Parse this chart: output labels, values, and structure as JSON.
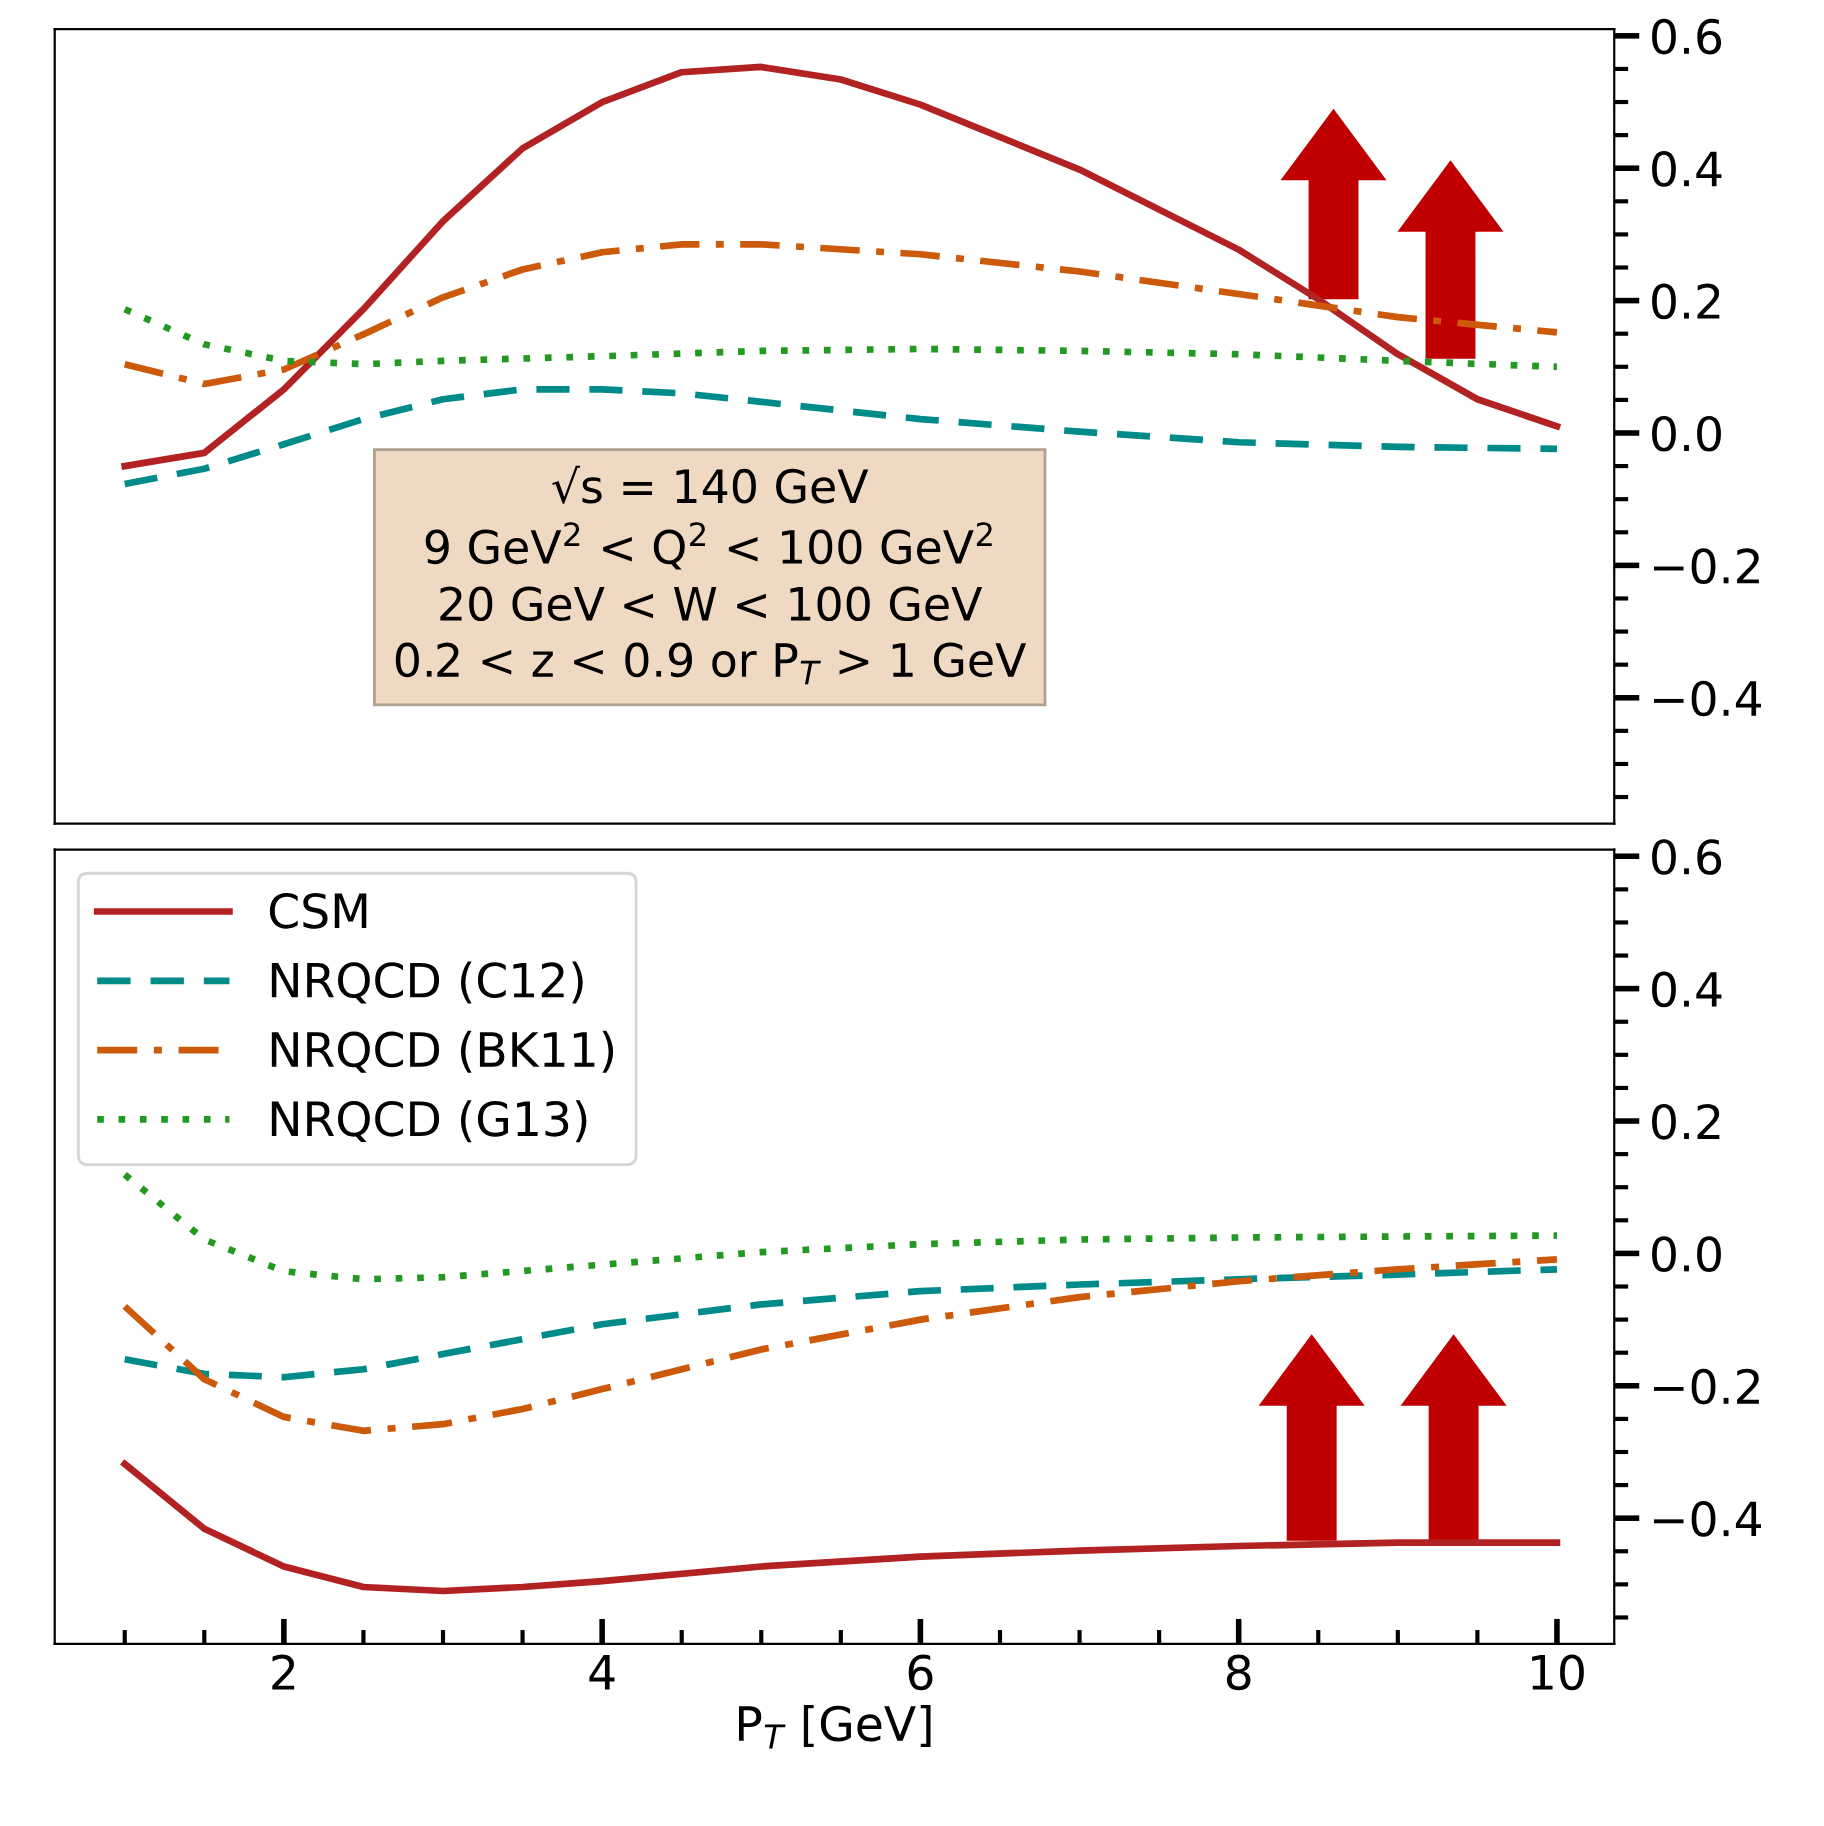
{
  "chart_data": [
    {
      "type": "line",
      "xlim": [
        0.56,
        10.36
      ],
      "ylim": [
        -0.59,
        0.61
      ],
      "tick_labels": "y",
      "yticks": [
        {
          "value": -0.4,
          "label": "−0.4"
        },
        {
          "value": -0.2,
          "label": "−0.2"
        },
        {
          "value": 0.0,
          "label": "0.0"
        },
        {
          "value": 0.2,
          "label": "0.2"
        },
        {
          "value": 0.4,
          "label": "0.4"
        },
        {
          "value": 0.6,
          "label": "0.6"
        }
      ],
      "annotations": [
        "√s = 140 GeV\n9 GeV$^{2}$ < Q$^{2}$ < 100 GeV$^{2}$\n20 GeV < W < 100 GeV\n0.2 < z < 0.9 or P$_{T}$ > 1 GeV"
      ],
      "series": [
        {
          "color": "#b22222",
          "line_style": "solid",
          "x": [
            1,
            1.5,
            2,
            2.5,
            3,
            3.5,
            4,
            4.5,
            5,
            5.5,
            6,
            7,
            8,
            8.5,
            9,
            9.5,
            10
          ],
          "values": [
            -0.05,
            -0.03,
            0.066,
            0.187,
            0.32,
            0.43,
            0.5,
            0.545,
            0.553,
            0.534,
            0.496,
            0.398,
            0.277,
            0.202,
            0.119,
            0.051,
            0.01
          ]
        },
        {
          "color": "#008b8b",
          "line_style": "dashed",
          "x": [
            1,
            1.5,
            2,
            2.5,
            3,
            3.5,
            4,
            4.5,
            5,
            6,
            7,
            8,
            9,
            10
          ],
          "values": [
            -0.077,
            -0.054,
            -0.017,
            0.021,
            0.051,
            0.066,
            0.066,
            0.06,
            0.047,
            0.021,
            0.002,
            -0.014,
            -0.021,
            -0.024
          ]
        },
        {
          "color": "#cc5a0a",
          "line_style": "dashdot",
          "x": [
            1,
            1.5,
            2,
            2.5,
            3,
            3.5,
            4,
            4.5,
            5,
            6,
            7,
            8,
            9,
            10
          ],
          "values": [
            0.104,
            0.074,
            0.096,
            0.149,
            0.205,
            0.247,
            0.273,
            0.285,
            0.285,
            0.27,
            0.244,
            0.21,
            0.175,
            0.152
          ]
        },
        {
          "color": "#229a22",
          "line_style": "dotted",
          "x": [
            1,
            1.5,
            2,
            2.5,
            3,
            4,
            5,
            6,
            7,
            8,
            9,
            10
          ],
          "values": [
            0.187,
            0.134,
            0.109,
            0.104,
            0.109,
            0.116,
            0.124,
            0.127,
            0.124,
            0.119,
            0.109,
            0.1
          ]
        }
      ]
    },
    {
      "type": "line",
      "xlim": [
        0.56,
        10.36
      ],
      "ylim": [
        -0.59,
        0.61
      ],
      "xlabel": "P$_{T}$ [GeV]",
      "legend": "top left",
      "xticks": [
        2,
        4,
        6,
        8,
        10
      ],
      "yticks": [
        {
          "value": -0.4,
          "label": "−0.4"
        },
        {
          "value": -0.2,
          "label": "−0.2"
        },
        {
          "value": 0.0,
          "label": "0.0"
        },
        {
          "value": 0.2,
          "label": "0.2"
        },
        {
          "value": 0.4,
          "label": "0.4"
        },
        {
          "value": 0.6,
          "label": "0.6"
        }
      ],
      "series": [
        {
          "name": "CSM",
          "color": "#b22222",
          "line_style": "solid",
          "x": [
            1,
            1.5,
            2,
            2.5,
            3,
            3.5,
            4,
            5,
            6,
            7,
            8,
            9,
            10
          ],
          "values": [
            -0.318,
            -0.416,
            -0.473,
            -0.504,
            -0.51,
            -0.504,
            -0.495,
            -0.473,
            -0.458,
            -0.449,
            -0.442,
            -0.437,
            -0.437
          ]
        },
        {
          "name": "NRQCD (C12)",
          "color": "#008b8b",
          "line_style": "dashed",
          "x": [
            1,
            1.5,
            2,
            2.5,
            3,
            4,
            5,
            6,
            7,
            8,
            9,
            10
          ],
          "values": [
            -0.16,
            -0.182,
            -0.187,
            -0.175,
            -0.152,
            -0.107,
            -0.077,
            -0.057,
            -0.047,
            -0.039,
            -0.032,
            -0.024
          ]
        },
        {
          "name": "NRQCD (BK11)",
          "color": "#cc5a0a",
          "line_style": "dashdot",
          "x": [
            1,
            1.5,
            2,
            2.5,
            3,
            3.5,
            4,
            5,
            6,
            7,
            8,
            9,
            10
          ],
          "values": [
            -0.08,
            -0.19,
            -0.247,
            -0.268,
            -0.258,
            -0.235,
            -0.205,
            -0.145,
            -0.1,
            -0.066,
            -0.042,
            -0.024,
            -0.009
          ]
        },
        {
          "name": "NRQCD (G13)",
          "color": "#229a22",
          "line_style": "dotted",
          "x": [
            1,
            1.5,
            2,
            2.5,
            3,
            4,
            5,
            6,
            7,
            8,
            10
          ],
          "values": [
            0.119,
            0.021,
            -0.027,
            -0.039,
            -0.036,
            -0.017,
            0.002,
            0.014,
            0.021,
            0.024,
            0.027
          ]
        }
      ]
    }
  ]
}
